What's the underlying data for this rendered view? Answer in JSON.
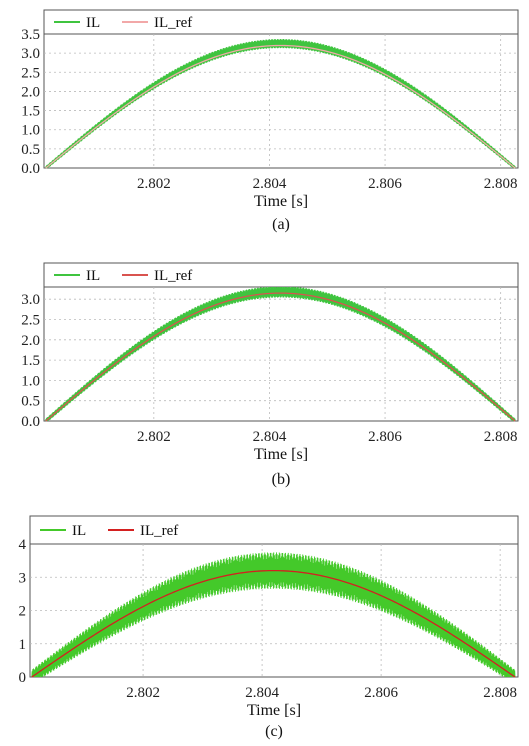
{
  "chart_data": [
    {
      "type": "line",
      "panel": "(a)",
      "xlabel": "Time [s]",
      "xlim": [
        2.8001,
        2.8083
      ],
      "xticks": [
        2.802,
        2.804,
        2.806,
        2.808
      ],
      "xtick_labels": [
        "2.802",
        "2.804",
        "2.806",
        "2.808"
      ],
      "ylim": [
        0.0,
        3.5
      ],
      "yticks": [
        0.0,
        0.5,
        1.0,
        1.5,
        2.0,
        2.5,
        3.0,
        3.5
      ],
      "ytick_labels": [
        "0.0",
        "0.5",
        "1.0",
        "1.5",
        "2.0",
        "2.5",
        "3.0",
        "3.5"
      ],
      "grid": true,
      "legend": "top-left",
      "series": [
        {
          "name": "IL",
          "color": "#3fc43f",
          "ripple": 0.12,
          "peak": 3.25,
          "peak_t": 2.8041
        },
        {
          "name": "IL_ref",
          "color": "#f2a8a8",
          "peak": 3.2,
          "peak_t": 2.8041
        }
      ],
      "caption": "(a)"
    },
    {
      "type": "line",
      "panel": "(b)",
      "xlabel": "Time [s]",
      "xlim": [
        2.8001,
        2.8083
      ],
      "xticks": [
        2.802,
        2.804,
        2.806,
        2.808
      ],
      "xtick_labels": [
        "2.802",
        "2.804",
        "2.806",
        "2.808"
      ],
      "ylim": [
        0.0,
        3.3
      ],
      "yticks": [
        0.0,
        0.5,
        1.0,
        1.5,
        2.0,
        2.5,
        3.0
      ],
      "ytick_labels": [
        "0.0",
        "0.5",
        "1.0",
        "1.5",
        "2.0",
        "2.5",
        "3.0"
      ],
      "grid": true,
      "legend": "top-left",
      "series": [
        {
          "name": "IL",
          "color": "#3fc43f",
          "ripple": 0.14,
          "peak": 3.18,
          "peak_t": 2.8042
        },
        {
          "name": "IL_ref",
          "color": "#d9534f",
          "peak": 3.15,
          "peak_t": 2.8042
        }
      ],
      "caption": "(b)"
    },
    {
      "type": "line",
      "panel": "(c)",
      "xlabel": "Time [s]",
      "xlim": [
        2.8001,
        2.8083
      ],
      "xticks": [
        2.802,
        2.804,
        2.806,
        2.808
      ],
      "xtick_labels": [
        "2.802",
        "2.804",
        "2.806",
        "2.808"
      ],
      "ylim": [
        0,
        4
      ],
      "yticks": [
        0,
        1,
        2,
        3,
        4
      ],
      "ytick_labels": [
        "0",
        "1",
        "2",
        "3",
        "4"
      ],
      "grid": true,
      "legend": "top-left",
      "series": [
        {
          "name": "IL",
          "color": "#44c92a",
          "ripple": 0.55,
          "peak": 3.2,
          "peak_t": 2.8043
        },
        {
          "name": "IL_ref",
          "color": "#d42020",
          "peak": 3.2,
          "peak_t": 2.8043
        }
      ],
      "caption": "(c)"
    }
  ]
}
